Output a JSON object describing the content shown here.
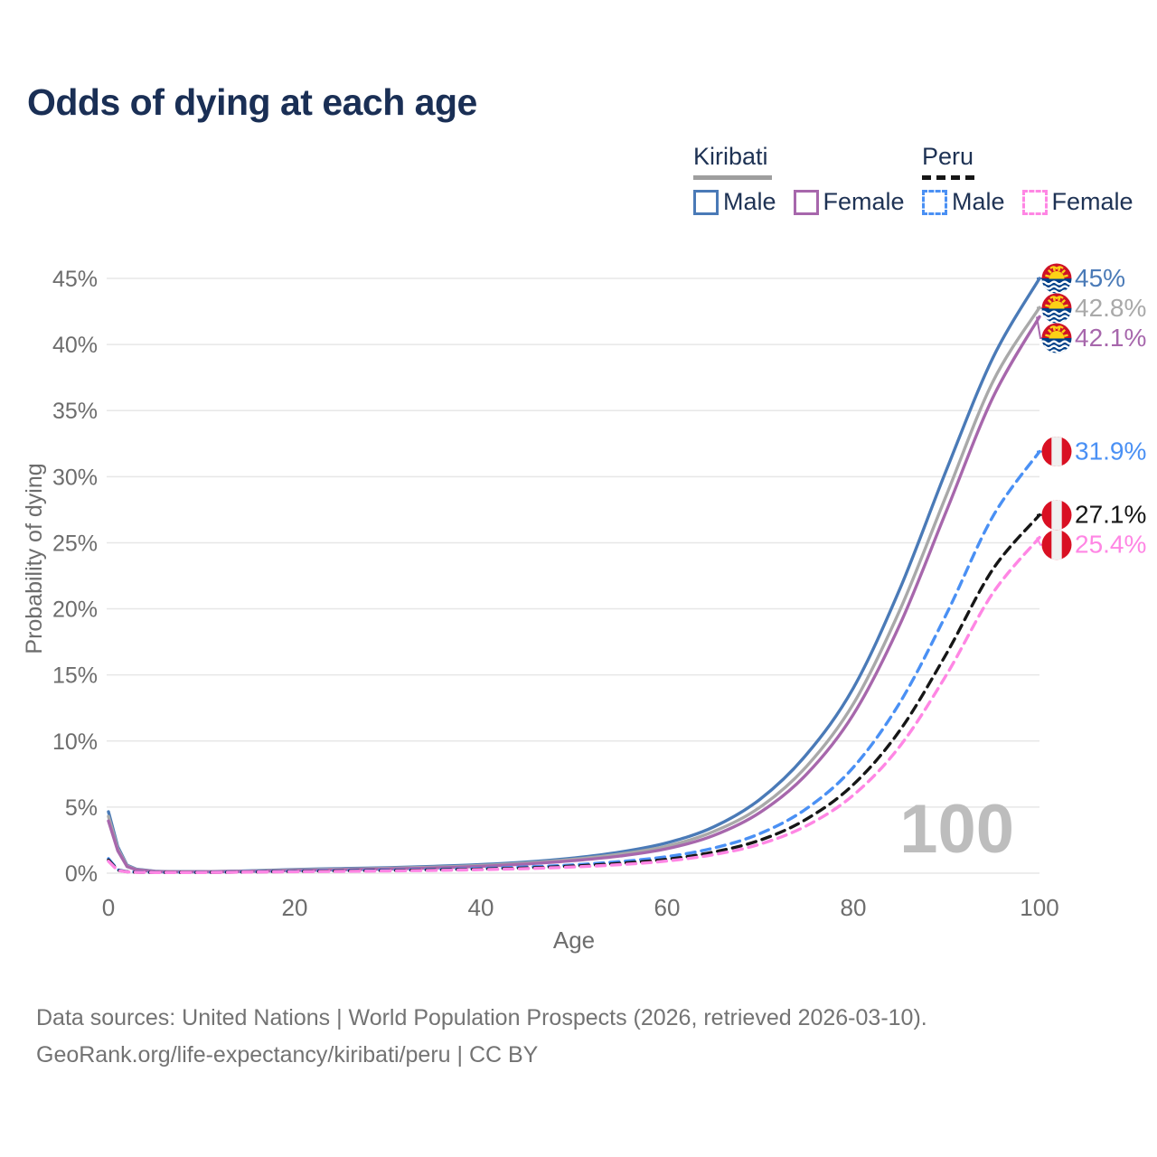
{
  "title": "Odds of dying at each age",
  "legend": {
    "groups": [
      {
        "name": "Kiribati",
        "line_style": "solid",
        "underline_color": "#9e9e9e",
        "items": [
          {
            "label": "Male",
            "color": "#4a7ab7"
          },
          {
            "label": "Female",
            "color": "#a767ac"
          }
        ]
      },
      {
        "name": "Peru",
        "line_style": "dashed",
        "underline_color": "#161616",
        "items": [
          {
            "label": "Male",
            "color": "#4a90f4"
          },
          {
            "label": "Female",
            "color": "#ff86e4"
          }
        ]
      }
    ]
  },
  "watermark": "100",
  "footer": {
    "line1": "Data sources: United Nations | World Population Prospects (2026, retrieved 2026-03-10).",
    "line2": "GeoRank.org/life-expectancy/kiribati/peru | CC BY"
  },
  "chart_data": {
    "type": "line",
    "title": "Odds of dying at each age",
    "xlabel": "Age",
    "ylabel": "Probability of dying",
    "xlim": [
      0,
      100
    ],
    "ylim": [
      0,
      45
    ],
    "x_ticks": [
      0,
      20,
      40,
      60,
      80,
      100
    ],
    "y_tick_values": [
      0,
      5,
      10,
      15,
      20,
      25,
      30,
      35,
      40,
      45
    ],
    "y_tick_suffix": "%",
    "grid": true,
    "legend_position": "top-right",
    "ages": [
      0,
      1,
      2,
      3,
      5,
      10,
      15,
      20,
      25,
      30,
      35,
      40,
      45,
      50,
      55,
      60,
      65,
      70,
      75,
      80,
      85,
      90,
      95,
      100
    ],
    "series": [
      {
        "name": "Kiribati male",
        "country": "kiribati",
        "sex": "male",
        "style": "solid",
        "color": "#4a7ab7",
        "values": [
          4.65,
          2.0,
          0.6,
          0.3,
          0.15,
          0.12,
          0.18,
          0.28,
          0.35,
          0.42,
          0.52,
          0.65,
          0.85,
          1.15,
          1.6,
          2.3,
          3.5,
          5.6,
          9.0,
          14.0,
          21.5,
          30.5,
          39.0,
          45.0
        ],
        "end_label": "45%",
        "end_value": 45.0
      },
      {
        "name": "Kiribati both sexes",
        "country": "kiribati",
        "sex": "both",
        "style": "solid",
        "color": "#a9a9a9",
        "values": [
          4.3,
          1.85,
          0.55,
          0.28,
          0.13,
          0.11,
          0.16,
          0.24,
          0.3,
          0.37,
          0.46,
          0.58,
          0.77,
          1.05,
          1.45,
          2.05,
          3.15,
          5.0,
          8.1,
          12.8,
          19.9,
          28.6,
          37.2,
          42.8
        ],
        "end_label": "42.8%",
        "end_value": 42.8
      },
      {
        "name": "Kiribati female",
        "country": "kiribati",
        "sex": "female",
        "style": "solid",
        "color": "#a767ac",
        "values": [
          3.95,
          1.7,
          0.5,
          0.25,
          0.12,
          0.1,
          0.14,
          0.2,
          0.26,
          0.32,
          0.4,
          0.52,
          0.7,
          0.95,
          1.3,
          1.85,
          2.85,
          4.6,
          7.5,
          12.0,
          18.8,
          27.4,
          36.0,
          42.1
        ],
        "end_label": "42.1%",
        "end_value": 42.1
      },
      {
        "name": "Peru male",
        "country": "peru",
        "sex": "male",
        "style": "dashed",
        "color": "#4a90f4",
        "values": [
          1.1,
          0.25,
          0.12,
          0.08,
          0.06,
          0.06,
          0.1,
          0.16,
          0.2,
          0.24,
          0.29,
          0.36,
          0.47,
          0.63,
          0.88,
          1.25,
          1.9,
          3.0,
          4.9,
          8.0,
          12.9,
          19.6,
          27.0,
          31.9
        ],
        "end_label": "31.9%",
        "end_value": 31.9
      },
      {
        "name": "Peru both sexes",
        "country": "peru",
        "sex": "both",
        "style": "dashed",
        "color": "#161616",
        "values": [
          1.0,
          0.22,
          0.11,
          0.07,
          0.055,
          0.055,
          0.09,
          0.13,
          0.17,
          0.2,
          0.25,
          0.31,
          0.4,
          0.54,
          0.75,
          1.05,
          1.6,
          2.5,
          4.1,
          6.7,
          10.8,
          16.6,
          23.0,
          27.1
        ],
        "end_label": "27.1%",
        "end_value": 27.1
      },
      {
        "name": "Peru female",
        "country": "peru",
        "sex": "female",
        "style": "dashed",
        "color": "#ff86e4",
        "values": [
          0.9,
          0.2,
          0.1,
          0.065,
          0.05,
          0.05,
          0.08,
          0.11,
          0.14,
          0.17,
          0.21,
          0.27,
          0.35,
          0.47,
          0.65,
          0.92,
          1.4,
          2.2,
          3.6,
          5.9,
          9.6,
          15.0,
          21.2,
          25.4
        ],
        "end_label": "25.4%",
        "end_value": 25.4
      }
    ]
  }
}
